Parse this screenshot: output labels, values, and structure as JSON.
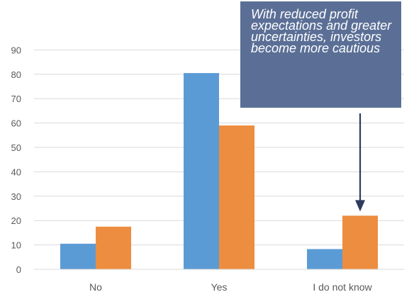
{
  "chart_data": {
    "type": "bar",
    "categories": [
      "No",
      "Yes",
      "I do not know"
    ],
    "series": [
      {
        "color": "#5b9bd5",
        "values": [
          10.5,
          80.5,
          8.3
        ]
      },
      {
        "color": "#ed8d3f",
        "values": [
          17.5,
          59.0,
          22.0
        ]
      }
    ],
    "ylim": [
      0,
      90
    ],
    "yticks": [
      "0",
      "10",
      "20",
      "30",
      "40",
      "50",
      "60",
      "70",
      "80",
      "90"
    ],
    "grid": true,
    "annotation": {
      "text": "With reduced profit expectations and greater uncertainties, investors become more cautious",
      "target_category": "I do not know"
    }
  }
}
